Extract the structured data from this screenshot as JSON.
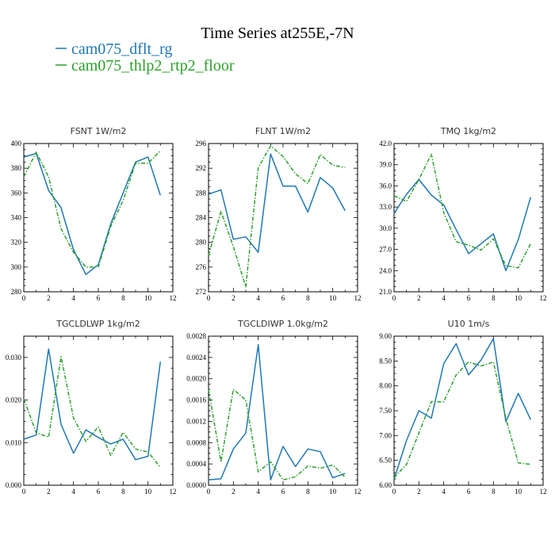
{
  "figure": {
    "title": "Time Series at255E,-7N",
    "legend": [
      {
        "label": "cam075_dflt_rg",
        "color": "#1f77b4",
        "dash": "solid"
      },
      {
        "label": "cam075_thlp2_rtp2_floor",
        "color": "#2ca02c",
        "dash": "dashdot"
      }
    ]
  },
  "chart_data": [
    {
      "type": "line",
      "title": "FSNT  1W/m2",
      "xlim": [
        0,
        12
      ],
      "x_ticks": [
        0,
        2,
        4,
        6,
        8,
        10,
        12
      ],
      "ylim": [
        280,
        400
      ],
      "y_ticks": [
        280,
        300,
        320,
        340,
        360,
        380,
        400
      ],
      "y_tick_labels": [
        "280",
        "300",
        "320",
        "340",
        "360",
        "380",
        "400"
      ],
      "x": [
        0,
        1,
        2,
        3,
        4,
        5,
        6,
        7,
        8,
        9,
        10,
        11
      ],
      "series": [
        {
          "name": "cam075_dflt_rg",
          "values": [
            389,
            392,
            362,
            348,
            314,
            294,
            302,
            335,
            360,
            385,
            389,
            358
          ]
        },
        {
          "name": "cam075_thlp2_rtp2_floor",
          "values": [
            373,
            393,
            373,
            331,
            312,
            300,
            300,
            333,
            354,
            384,
            384,
            394
          ]
        }
      ]
    },
    {
      "type": "line",
      "title": "FLNT  1W/m2",
      "xlim": [
        0,
        12
      ],
      "x_ticks": [
        0,
        2,
        4,
        6,
        8,
        10,
        12
      ],
      "ylim": [
        272,
        296
      ],
      "y_ticks": [
        272,
        276,
        280,
        284,
        288,
        292,
        296
      ],
      "y_tick_labels": [
        "272",
        "276",
        "280",
        "284",
        "288",
        "292",
        "296"
      ],
      "x": [
        0,
        1,
        2,
        3,
        4,
        5,
        6,
        7,
        8,
        9,
        10,
        11
      ],
      "series": [
        {
          "name": "cam075_dflt_rg",
          "values": [
            287.8,
            288.5,
            280.5,
            280.9,
            278.4,
            294.3,
            289.1,
            289.1,
            284.9,
            290.5,
            288.8,
            285.1
          ]
        },
        {
          "name": "cam075_thlp2_rtp2_floor",
          "values": [
            277.9,
            285,
            279.3,
            272.8,
            292.1,
            295.6,
            293.9,
            291.1,
            289.5,
            294.2,
            292.5,
            292.1
          ]
        }
      ]
    },
    {
      "type": "line",
      "title": "TMQ  1kg/m2",
      "xlim": [
        0,
        12
      ],
      "x_ticks": [
        0,
        2,
        4,
        6,
        8,
        10,
        12
      ],
      "ylim": [
        21,
        42
      ],
      "y_ticks": [
        21,
        24,
        27,
        30,
        33,
        36,
        39,
        42
      ],
      "y_tick_labels": [
        "21.0",
        "24.0",
        "27.0",
        "30.0",
        "33.0",
        "36.0",
        "39.0",
        "42.0"
      ],
      "x": [
        0,
        1,
        2,
        3,
        4,
        5,
        6,
        7,
        8,
        9,
        10,
        11
      ],
      "series": [
        {
          "name": "cam075_dflt_rg",
          "values": [
            32.1,
            34.8,
            36.9,
            34.7,
            33.3,
            29.8,
            26.4,
            27.8,
            29.2,
            24,
            28.4,
            34.4
          ]
        },
        {
          "name": "cam075_thlp2_rtp2_floor",
          "values": [
            34.6,
            33.8,
            36.9,
            40.5,
            32.2,
            28.1,
            27.6,
            26.9,
            28.5,
            24.7,
            24.4,
            27.8
          ]
        }
      ]
    },
    {
      "type": "line",
      "title": "TGCLDLWP  1kg/m2",
      "xlim": [
        0,
        12
      ],
      "x_ticks": [
        0,
        2,
        4,
        6,
        8,
        10,
        12
      ],
      "ylim": [
        0,
        0.035
      ],
      "y_ticks": [
        0,
        0.01,
        0.02,
        0.03
      ],
      "y_tick_labels": [
        "0.000",
        "0.010",
        "0.020",
        "0.030"
      ],
      "x": [
        0,
        1,
        2,
        3,
        4,
        5,
        6,
        7,
        8,
        9,
        10,
        11
      ],
      "series": [
        {
          "name": "cam075_dflt_rg",
          "values": [
            0.0108,
            0.0118,
            0.032,
            0.0143,
            0.0075,
            0.013,
            0.0112,
            0.0097,
            0.0108,
            0.006,
            0.0068,
            0.029
          ]
        },
        {
          "name": "cam075_thlp2_rtp2_floor",
          "values": [
            0.0203,
            0.0123,
            0.0113,
            0.0302,
            0.0158,
            0.0103,
            0.0137,
            0.007,
            0.0124,
            0.0085,
            0.0078,
            0.0042
          ]
        }
      ]
    },
    {
      "type": "line",
      "title": "TGCLDIWP  1.0kg/m2",
      "xlim": [
        0,
        12
      ],
      "x_ticks": [
        0,
        2,
        4,
        6,
        8,
        10,
        12
      ],
      "ylim": [
        0,
        0.0028
      ],
      "y_ticks": [
        0,
        0.0004,
        0.0008,
        0.0012,
        0.0016,
        0.002,
        0.0024,
        0.0028
      ],
      "y_tick_labels": [
        "0.0000",
        "0.0004",
        "0.0008",
        "0.0012",
        "0.0016",
        "0.0020",
        "0.0024",
        "0.0028"
      ],
      "x": [
        0,
        1,
        2,
        3,
        4,
        5,
        6,
        7,
        8,
        9,
        10,
        11
      ],
      "series": [
        {
          "name": "cam075_dflt_rg",
          "values": [
            0.0001,
            0.00012,
            0.00068,
            0.00098,
            0.00264,
            0.0001,
            0.00073,
            0.00035,
            0.00068,
            0.00063,
            0.00014,
            0.00022
          ]
        },
        {
          "name": "cam075_thlp2_rtp2_floor",
          "values": [
            0.0018,
            0.00044,
            0.0018,
            0.0016,
            0.00025,
            0.00044,
            0.0001,
            0.00016,
            0.00036,
            0.00032,
            0.00038,
            0.00015
          ]
        }
      ]
    },
    {
      "type": "line",
      "title": "U10  1m/s",
      "xlim": [
        0,
        12
      ],
      "x_ticks": [
        0,
        2,
        4,
        6,
        8,
        10,
        12
      ],
      "ylim": [
        6,
        9
      ],
      "y_ticks": [
        6,
        6.5,
        7,
        7.5,
        8,
        8.5,
        9
      ],
      "y_tick_labels": [
        "6.00",
        "6.50",
        "7.00",
        "7.50",
        "8.00",
        "8.50",
        "9.00"
      ],
      "x": [
        0,
        1,
        2,
        3,
        4,
        5,
        6,
        7,
        8,
        9,
        10,
        11
      ],
      "series": [
        {
          "name": "cam075_dflt_rg",
          "values": [
            6.12,
            6.9,
            7.5,
            7.35,
            8.45,
            8.85,
            8.22,
            8.52,
            8.95,
            7.28,
            7.85,
            7.32
          ]
        },
        {
          "name": "cam075_thlp2_rtp2_floor",
          "values": [
            6.15,
            6.42,
            7.05,
            7.68,
            7.68,
            8.22,
            8.48,
            8.4,
            8.48,
            7.35,
            6.45,
            6.42
          ]
        }
      ]
    }
  ]
}
